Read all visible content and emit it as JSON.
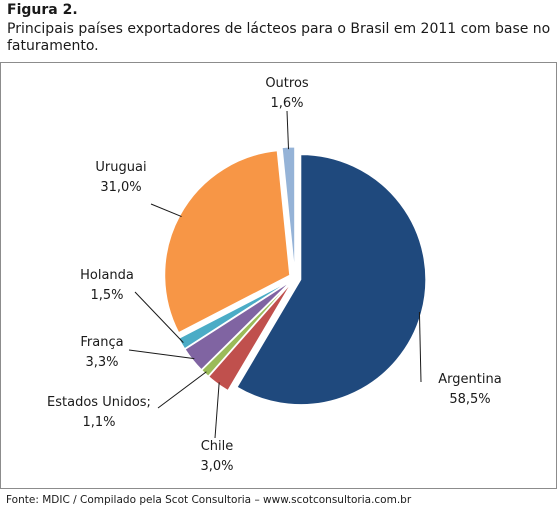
{
  "figure": {
    "label": "Figura 2.",
    "caption": "Principais países exportadores de lácteos para o Brasil em 2011 com base no faturamento."
  },
  "source": "Fonte: MDIC / Compilado pela Scot Consultoria – www.scotconsultoria.com.br",
  "chart_data": {
    "type": "pie",
    "title": "",
    "unit": "%",
    "slices": [
      {
        "name": "Argentina",
        "value": 58.5,
        "value_label": "58,5%",
        "color": "#1f497d"
      },
      {
        "name": "Chile",
        "value": 3.0,
        "value_label": "3,0%",
        "color": "#c0504d"
      },
      {
        "name": "Estados Unidos;",
        "value": 1.1,
        "value_label": "1,1%",
        "color": "#9bbb59"
      },
      {
        "name": "França",
        "value": 3.3,
        "value_label": "3,3%",
        "color": "#8064a2"
      },
      {
        "name": "Holanda",
        "value": 1.5,
        "value_label": "1,5%",
        "color": "#4bacc6"
      },
      {
        "name": "Uruguai",
        "value": 31.0,
        "value_label": "31,0%",
        "color": "#f79646"
      },
      {
        "name": "Outros",
        "value": 1.6,
        "value_label": "1,6%",
        "color": "#95b3d7"
      }
    ],
    "exploded": true,
    "legend": "none"
  }
}
